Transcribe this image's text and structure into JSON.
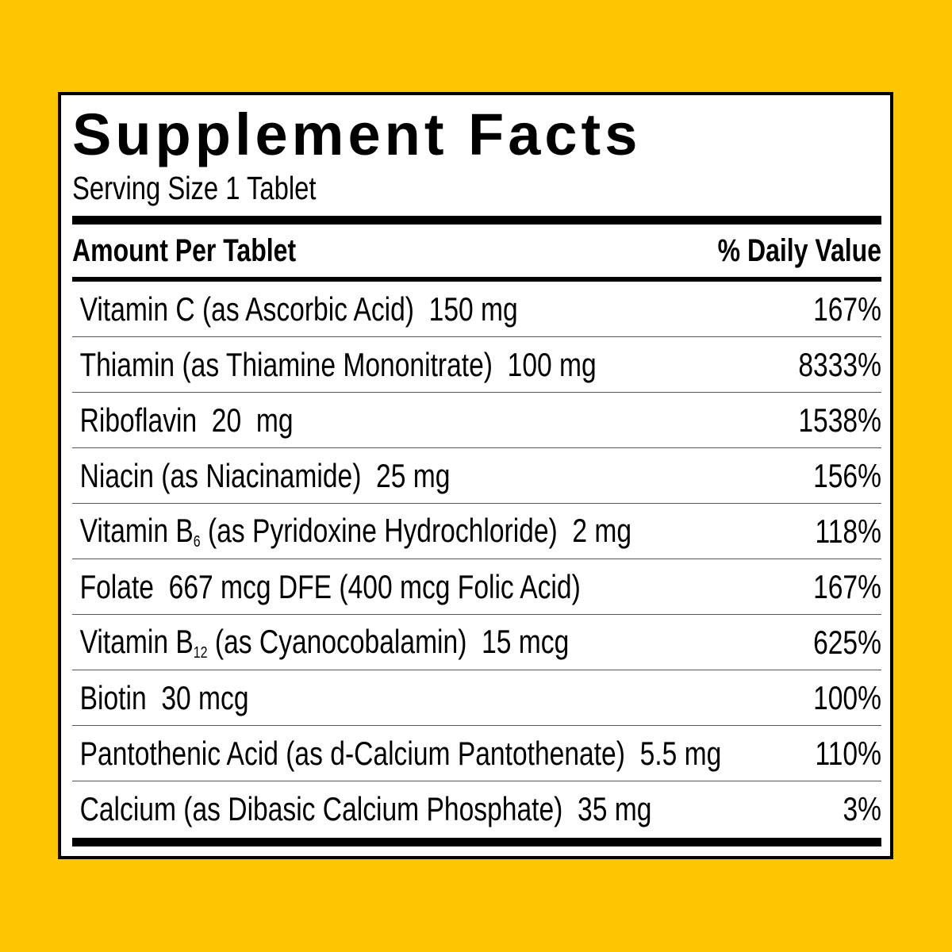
{
  "title": "Supplement Facts",
  "serving_size": "Serving Size 1 Tablet",
  "header": {
    "amount": "Amount Per Tablet",
    "dv": "% Daily Value"
  },
  "rows": [
    {
      "pre": "Vitamin C (as Ascorbic Acid)  150 mg",
      "sub": "",
      "post": "",
      "dv": "167%"
    },
    {
      "pre": "Thiamin (as Thiamine Mononitrate)  100 mg",
      "sub": "",
      "post": "",
      "dv": "8333%"
    },
    {
      "pre": "Riboflavin  20  mg",
      "sub": "",
      "post": "",
      "dv": "1538%"
    },
    {
      "pre": "Niacin (as Niacinamide)  25 mg",
      "sub": "",
      "post": "",
      "dv": "156%"
    },
    {
      "pre": "Vitamin B",
      "sub": "6",
      "post": " (as Pyridoxine Hydrochloride)  2 mg",
      "dv": "118%"
    },
    {
      "pre": "Folate  667 mcg DFE (400 mcg Folic Acid)",
      "sub": "",
      "post": "",
      "dv": "167%"
    },
    {
      "pre": "Vitamin B",
      "sub": "12",
      "post": " (as Cyanocobalamin)  15 mcg",
      "dv": "625%"
    },
    {
      "pre": "Biotin  30 mcg",
      "sub": "",
      "post": "",
      "dv": "100%"
    },
    {
      "pre": "Pantothenic Acid (as d-Calcium Pantothenate)  5.5 mg",
      "sub": "",
      "post": "",
      "dv": "110%"
    },
    {
      "pre": "Calcium (as Dibasic Calcium Phosphate)  35 mg",
      "sub": "",
      "post": "",
      "dv": "3%"
    }
  ],
  "colors": {
    "background": "#fec600",
    "panel": "#ffffff",
    "ink": "#000000"
  }
}
